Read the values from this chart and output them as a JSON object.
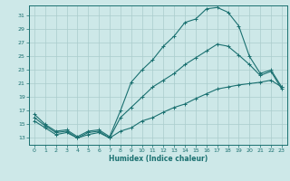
{
  "title": "",
  "xlabel": "Humidex (Indice chaleur)",
  "bg_color": "#cde8e8",
  "grid_color": "#aacccc",
  "line_color": "#1a7070",
  "x_ticks": [
    0,
    1,
    2,
    3,
    4,
    5,
    6,
    7,
    8,
    9,
    10,
    11,
    12,
    13,
    14,
    15,
    16,
    17,
    18,
    19,
    20,
    21,
    22,
    23
  ],
  "y_ticks": [
    13,
    15,
    17,
    19,
    21,
    23,
    25,
    27,
    29,
    31
  ],
  "ylim": [
    12.0,
    32.5
  ],
  "xlim": [
    -0.5,
    23.5
  ],
  "line1_y": [
    16.5,
    15.0,
    14.0,
    14.2,
    13.2,
    14.0,
    14.2,
    13.2,
    17.0,
    21.2,
    23.0,
    24.5,
    26.5,
    28.0,
    30.0,
    30.5,
    32.0,
    32.2,
    31.5,
    29.5,
    25.0,
    22.5,
    23.0,
    20.5
  ],
  "line2_y": [
    16.0,
    14.8,
    13.8,
    14.0,
    13.0,
    13.8,
    14.0,
    13.0,
    16.0,
    17.5,
    19.0,
    20.5,
    21.5,
    22.5,
    23.8,
    24.8,
    25.8,
    26.8,
    26.5,
    25.2,
    23.8,
    22.2,
    22.8,
    20.2
  ],
  "line3_y": [
    15.5,
    14.5,
    13.5,
    13.8,
    13.0,
    13.5,
    13.8,
    13.0,
    14.0,
    14.5,
    15.5,
    16.0,
    16.8,
    17.5,
    18.0,
    18.8,
    19.5,
    20.2,
    20.5,
    20.8,
    21.0,
    21.2,
    21.5,
    20.5
  ]
}
